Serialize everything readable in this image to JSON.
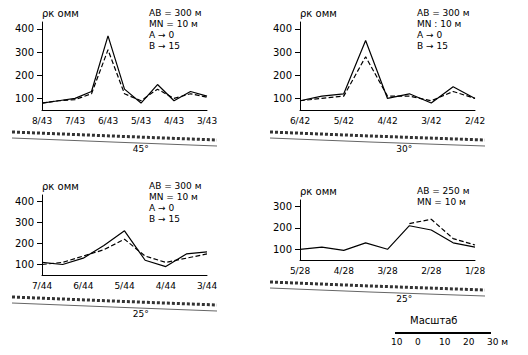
{
  "chart_data": [
    {
      "type": "line",
      "ylabel": "ρк омм",
      "annotations": [
        "AB = 300 м",
        "MN = 10 м",
        "A → 0",
        "B → 15"
      ],
      "section_label": "45°",
      "categories": [
        "8/43",
        null,
        "7/43",
        null,
        "6/43",
        null,
        "5/43",
        null,
        "4/43",
        null,
        "3/43"
      ],
      "series": [
        {
          "color": "#000000",
          "line_style": "solid",
          "values": [
            80,
            90,
            100,
            130,
            370,
            140,
            80,
            160,
            90,
            130,
            110
          ]
        },
        {
          "color": "#000000",
          "line_style": "dashed",
          "values": [
            80,
            90,
            95,
            120,
            310,
            120,
            90,
            140,
            100,
            120,
            105
          ]
        }
      ],
      "ylim": [
        50,
        430
      ],
      "yticks": [
        100,
        200,
        300,
        400
      ],
      "grid": false
    },
    {
      "type": "line",
      "ylabel": "ρк омм",
      "annotations": [
        "AB = 300 м",
        "MN : 10 м",
        "A → 0",
        "B → 15"
      ],
      "section_label": "30°",
      "categories": [
        "6/42",
        null,
        "5/42",
        null,
        "4/42",
        null,
        "3/42",
        null,
        "2/42"
      ],
      "series": [
        {
          "color": "#000000",
          "line_style": "solid",
          "values": [
            90,
            110,
            120,
            350,
            100,
            120,
            80,
            150,
            100
          ]
        },
        {
          "color": "#000000",
          "line_style": "dashed",
          "values": [
            90,
            100,
            110,
            280,
            110,
            110,
            90,
            130,
            100
          ]
        }
      ],
      "ylim": [
        50,
        430
      ],
      "yticks": [
        100,
        200,
        300,
        400
      ],
      "grid": false
    },
    {
      "type": "line",
      "ylabel": "ρк омм",
      "annotations": [
        "AB = 300 м",
        "MN = 10 м",
        "A → 0",
        "B → 15"
      ],
      "section_label": "25°",
      "categories": [
        "7/44",
        null,
        "6/44",
        null,
        "5/44",
        null,
        "4/44",
        null,
        "3/44"
      ],
      "series": [
        {
          "color": "#000000",
          "line_style": "solid",
          "values": [
            110,
            100,
            130,
            190,
            260,
            120,
            90,
            150,
            160
          ]
        },
        {
          "color": "#000000",
          "line_style": "dashed",
          "values": [
            100,
            110,
            140,
            170,
            220,
            140,
            110,
            130,
            150
          ]
        }
      ],
      "ylim": [
        50,
        430
      ],
      "yticks": [
        100,
        200,
        300,
        400
      ],
      "grid": false
    },
    {
      "type": "line",
      "ylabel": "ρк омм",
      "annotations": [
        "AB = 250 м",
        "MN = 10 м"
      ],
      "section_label": "25°",
      "categories": [
        "5/28",
        null,
        "4/28",
        null,
        "3/28",
        null,
        "2/28",
        null,
        "1/28"
      ],
      "series": [
        {
          "color": "#000000",
          "line_style": "solid",
          "values": [
            100,
            110,
            95,
            130,
            100,
            210,
            190,
            130,
            110
          ]
        },
        {
          "color": "#000000",
          "line_style": "dashed",
          "values": [
            null,
            null,
            null,
            null,
            null,
            220,
            240,
            150,
            120
          ]
        }
      ],
      "ylim": [
        50,
        330
      ],
      "yticks": [
        100,
        200,
        300
      ],
      "grid": false
    }
  ],
  "scale_bar": {
    "title": "Масштаб",
    "labels": [
      "10",
      "0",
      "10",
      "20",
      "30 м"
    ]
  }
}
